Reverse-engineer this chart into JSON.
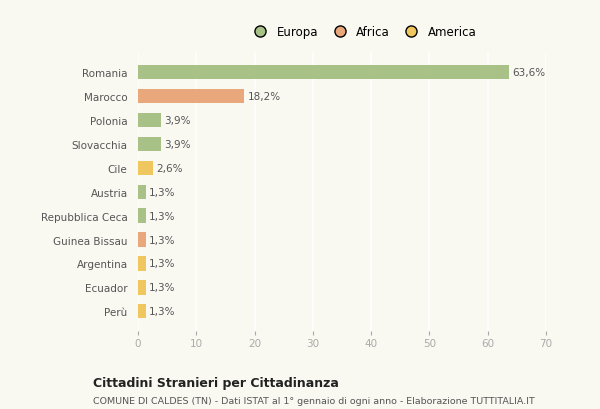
{
  "categories": [
    "Romania",
    "Marocco",
    "Polonia",
    "Slovacchia",
    "Cile",
    "Austria",
    "Repubblica Ceca",
    "Guinea Bissau",
    "Argentina",
    "Ecuador",
    "Perù"
  ],
  "values": [
    63.6,
    18.2,
    3.9,
    3.9,
    2.6,
    1.3,
    1.3,
    1.3,
    1.3,
    1.3,
    1.3
  ],
  "labels": [
    "63,6%",
    "18,2%",
    "3,9%",
    "3,9%",
    "2,6%",
    "1,3%",
    "1,3%",
    "1,3%",
    "1,3%",
    "1,3%",
    "1,3%"
  ],
  "colors": [
    "#a8c186",
    "#e8a87c",
    "#a8c186",
    "#a8c186",
    "#f0c75e",
    "#a8c186",
    "#a8c186",
    "#e8a87c",
    "#f0c75e",
    "#f0c75e",
    "#f0c75e"
  ],
  "legend": [
    {
      "label": "Europa",
      "color": "#a8c186"
    },
    {
      "label": "Africa",
      "color": "#e8a87c"
    },
    {
      "label": "America",
      "color": "#f0c75e"
    }
  ],
  "xlim": [
    0,
    70
  ],
  "xticks": [
    0,
    10,
    20,
    30,
    40,
    50,
    60,
    70
  ],
  "title_bold": "Cittadini Stranieri per Cittadinanza",
  "subtitle": "COMUNE DI CALDES (TN) - Dati ISTAT al 1° gennaio di ogni anno - Elaborazione TUTTITALIA.IT",
  "background_color": "#f9f9f2",
  "grid_color": "#ffffff",
  "bar_height": 0.6,
  "label_fontsize": 7.5,
  "ytick_fontsize": 7.5,
  "xtick_fontsize": 7.5,
  "legend_fontsize": 8.5,
  "title_fontsize": 9.0,
  "subtitle_fontsize": 6.8
}
